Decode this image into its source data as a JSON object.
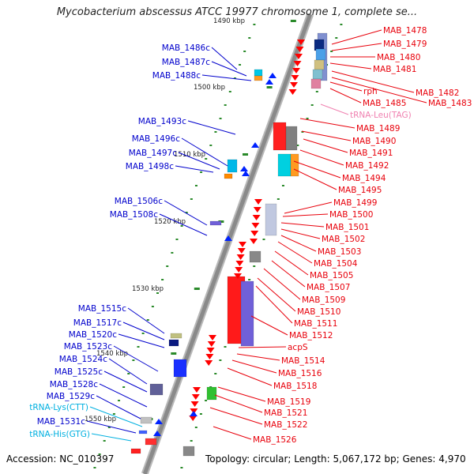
{
  "title": "Mycobacterium abscessus ATCC 19977 chromosome 1, complete se...",
  "footer": {
    "accession": "Accession: NC_010397",
    "topology": "Topology: circular; Length: 5,067,172 bp; Genes: 4,970"
  },
  "colors": {
    "backbone": "#8a8a8a",
    "forward_label": "#e8000b",
    "reverse_label": "#0000cc",
    "trna_forward_label": "#f080b0",
    "trna_reverse_label": "#00b0e0",
    "forward_cds": "#ff0000",
    "reverse_cds": "#0022ff",
    "ticks": "#2a8a2a"
  },
  "scale_labels": [
    "1490 kbp",
    "1500 kbp",
    "1510 kbp",
    "1520 kbp",
    "1530 kbp",
    "1540 kbp",
    "1550 kbp"
  ],
  "reverse_labels": [
    "MAB_1486c",
    "MAB_1487c",
    "MAB_1488c",
    "MAB_1493c",
    "MAB_1496c",
    "MAB_1497c",
    "MAB_1498c",
    "MAB_1506c",
    "MAB_1508c",
    "MAB_1515c",
    "MAB_1517c",
    "MAB_1520c",
    "MAB_1523c",
    "MAB_1524c",
    "MAB_1525c",
    "MAB_1528c",
    "MAB_1529c",
    "tRNA-Lys(CTT)",
    "MAB_1531c",
    "tRNA-His(GTG)"
  ],
  "forward_labels": [
    "MAB_1478",
    "MAB_1479",
    "MAB_1480",
    "MAB_1481",
    "MAB_1482",
    "rph",
    "MAB_1483",
    "MAB_1485",
    "tRNA-Leu(TAG)",
    "MAB_1489",
    "MAB_1490",
    "MAB_1491",
    "MAB_1492",
    "MAB_1494",
    "MAB_1495",
    "MAB_1499",
    "MAB_1500",
    "MAB_1501",
    "MAB_1502",
    "MAB_1503",
    "MAB_1504",
    "MAB_1505",
    "MAB_1507",
    "MAB_1509",
    "MAB_1510",
    "MAB_1511",
    "MAB_1512",
    "acpS",
    "MAB_1514",
    "MAB_1516",
    "MAB_1518",
    "MAB_1519",
    "MAB_1521",
    "MAB_1522",
    "MAB_1526"
  ]
}
